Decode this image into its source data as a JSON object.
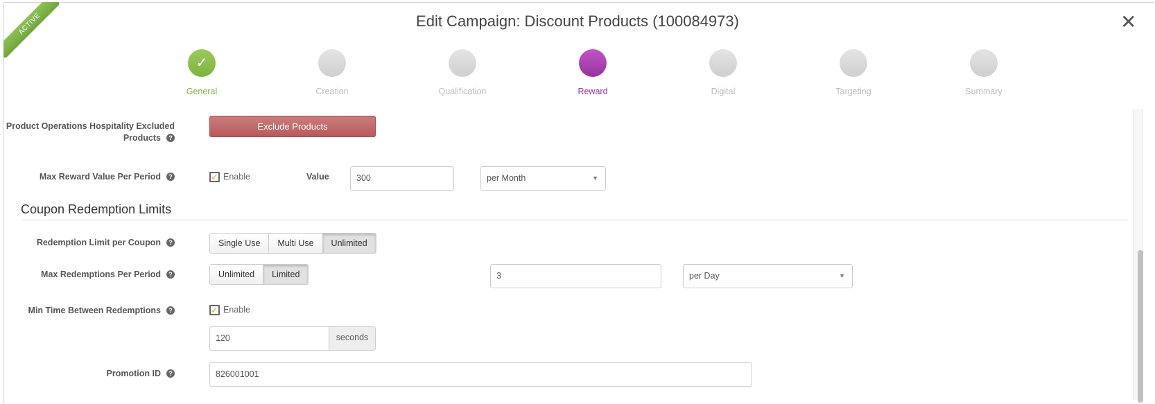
{
  "header": {
    "title": "Edit Campaign: Discount Products (100084973)",
    "status_ribbon": "ACTIVE",
    "close_icon": "close-icon"
  },
  "colors": {
    "done": "#7cb342",
    "current": "#99339e",
    "pending": "#d8d8d8",
    "exclude_button": "#c06868"
  },
  "steps": [
    {
      "label": "General",
      "state": "done"
    },
    {
      "label": "Creation",
      "state": "pending"
    },
    {
      "label": "Qualification",
      "state": "pending"
    },
    {
      "label": "Reward",
      "state": "current"
    },
    {
      "label": "Digital",
      "state": "pending"
    },
    {
      "label": "Targeting",
      "state": "pending"
    },
    {
      "label": "Summary",
      "state": "pending"
    }
  ],
  "form": {
    "excluded_products": {
      "label_line1": "Product Operations Hospitality Excluded",
      "label_line2": "Products",
      "button": "Exclude Products"
    },
    "max_reward": {
      "label": "Max Reward Value Per Period",
      "enable_label": "Enable",
      "enabled": true,
      "value_label": "Value",
      "value": "300",
      "period": "per Month"
    },
    "section_title": "Coupon Redemption Limits",
    "redemption_limit": {
      "label": "Redemption Limit per Coupon",
      "options": [
        "Single Use",
        "Multi Use",
        "Unlimited"
      ],
      "selected": "Unlimited"
    },
    "max_redemptions": {
      "label": "Max Redemptions Per Period",
      "options": [
        "Unlimited",
        "Limited"
      ],
      "selected": "Limited",
      "value": "3",
      "period": "per Day"
    },
    "min_time": {
      "label": "Min Time Between Redemptions",
      "enable_label": "Enable",
      "enabled": true,
      "value": "120",
      "unit": "seconds"
    },
    "promotion_id": {
      "label": "Promotion ID",
      "value": "826001001"
    }
  }
}
